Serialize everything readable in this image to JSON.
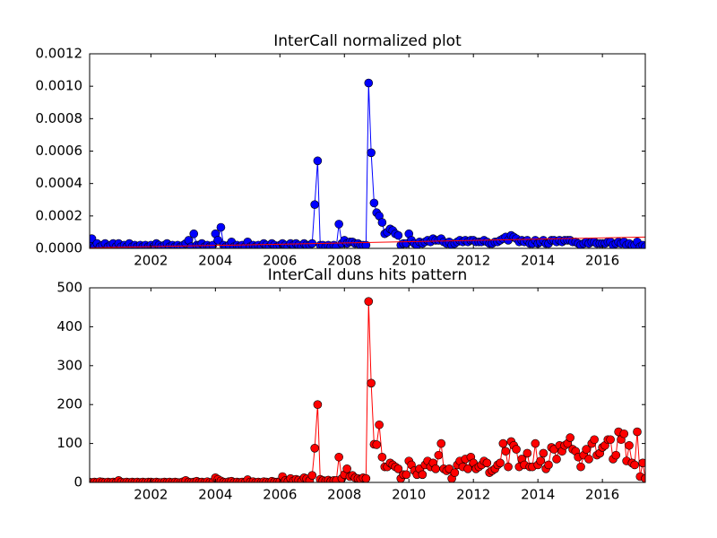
{
  "chart_data": [
    {
      "type": "line",
      "title": "InterCall normalized plot",
      "x": [
        2000.08,
        2000.17,
        2000.25,
        2000.33,
        2000.42,
        2000.5,
        2000.58,
        2000.67,
        2000.75,
        2000.83,
        2000.92,
        2001.0,
        2001.08,
        2001.17,
        2001.25,
        2001.33,
        2001.42,
        2001.5,
        2001.58,
        2001.67,
        2001.75,
        2001.83,
        2001.92,
        2002.0,
        2002.08,
        2002.17,
        2002.25,
        2002.33,
        2002.42,
        2002.5,
        2002.58,
        2002.67,
        2002.75,
        2002.83,
        2002.92,
        2003.0,
        2003.08,
        2003.17,
        2003.25,
        2003.33,
        2003.42,
        2003.5,
        2003.58,
        2003.67,
        2003.75,
        2003.83,
        2003.92,
        2004.0,
        2004.08,
        2004.17,
        2004.25,
        2004.33,
        2004.42,
        2004.5,
        2004.58,
        2004.67,
        2004.75,
        2004.83,
        2004.92,
        2005.0,
        2005.08,
        2005.17,
        2005.25,
        2005.33,
        2005.42,
        2005.5,
        2005.58,
        2005.67,
        2005.75,
        2005.83,
        2005.92,
        2006.0,
        2006.08,
        2006.17,
        2006.25,
        2006.33,
        2006.42,
        2006.5,
        2006.58,
        2006.67,
        2006.75,
        2006.83,
        2006.92,
        2007.0,
        2007.08,
        2007.17,
        2007.25,
        2007.33,
        2007.42,
        2007.5,
        2007.58,
        2007.67,
        2007.75,
        2007.83,
        2007.92,
        2008.0,
        2008.08,
        2008.17,
        2008.25,
        2008.33,
        2008.42,
        2008.5,
        2008.58,
        2008.67,
        2008.75,
        2008.83,
        2008.92,
        2009.0,
        2009.08,
        2009.17,
        2009.25,
        2009.33,
        2009.42,
        2009.5,
        2009.58,
        2009.67,
        2009.75,
        2009.83,
        2009.92,
        2010.0,
        2010.08,
        2010.17,
        2010.25,
        2010.33,
        2010.42,
        2010.5,
        2010.58,
        2010.67,
        2010.75,
        2010.83,
        2010.92,
        2011.0,
        2011.08,
        2011.17,
        2011.25,
        2011.33,
        2011.42,
        2011.5,
        2011.58,
        2011.67,
        2011.75,
        2011.83,
        2011.92,
        2012.0,
        2012.08,
        2012.17,
        2012.25,
        2012.33,
        2012.42,
        2012.5,
        2012.58,
        2012.67,
        2012.75,
        2012.83,
        2012.92,
        2013.0,
        2013.08,
        2013.17,
        2013.25,
        2013.33,
        2013.42,
        2013.5,
        2013.58,
        2013.67,
        2013.75,
        2013.83,
        2013.92,
        2014.0,
        2014.08,
        2014.17,
        2014.25,
        2014.33,
        2014.42,
        2014.5,
        2014.58,
        2014.67,
        2014.75,
        2014.83,
        2014.92,
        2015.0,
        2015.08,
        2015.17,
        2015.25,
        2015.33,
        2015.42,
        2015.5,
        2015.58,
        2015.67,
        2015.75,
        2015.83,
        2015.92,
        2016.0,
        2016.08,
        2016.17,
        2016.25,
        2016.33,
        2016.42,
        2016.5,
        2016.58,
        2016.67,
        2016.75,
        2016.83,
        2016.92,
        2017.0,
        2017.08,
        2017.17,
        2017.25,
        2017.33
      ],
      "series": [
        {
          "color": "#0000ff",
          "marker": true,
          "values": [
            3e-05,
            6e-05,
            1e-05,
            3e-05,
            1e-05,
            2e-05,
            3e-05,
            1e-05,
            2e-05,
            3e-05,
            1e-05,
            3e-05,
            1e-05,
            2e-05,
            1e-05,
            3e-05,
            1e-05,
            2e-05,
            1e-05,
            2e-05,
            1e-05,
            2e-05,
            1e-05,
            2e-05,
            1e-05,
            3e-05,
            2e-05,
            1e-05,
            2e-05,
            3e-05,
            1e-05,
            2e-05,
            1e-05,
            2e-05,
            1e-05,
            2e-05,
            3e-05,
            5e-05,
            1e-05,
            9e-05,
            2e-05,
            2e-05,
            3e-05,
            1e-05,
            2e-05,
            1e-05,
            2e-05,
            9e-05,
            5e-05,
            0.00013,
            2e-05,
            1e-05,
            2e-05,
            4e-05,
            1e-05,
            2e-05,
            1e-05,
            2e-05,
            1e-05,
            4e-05,
            1e-05,
            2e-05,
            1e-05,
            2e-05,
            1e-05,
            3e-05,
            2e-05,
            1e-05,
            3e-05,
            2e-05,
            1e-05,
            2e-05,
            3e-05,
            2e-05,
            1e-05,
            3e-05,
            2e-05,
            3e-05,
            2e-05,
            1e-05,
            3e-05,
            2e-05,
            2e-05,
            3e-05,
            0.00027,
            0.00054,
            2e-05,
            2e-05,
            1e-05,
            2e-05,
            1e-05,
            2e-05,
            1e-05,
            0.00015,
            3e-05,
            5e-05,
            3e-05,
            4e-05,
            4e-05,
            3e-05,
            3e-05,
            2e-05,
            2e-05,
            2e-05,
            0.00102,
            0.00059,
            0.00028,
            0.00022,
            0.0002,
            0.00016,
            9e-05,
            0.0001,
            0.00012,
            0.00011,
            9e-05,
            8e-05,
            2e-05,
            3e-05,
            3e-05,
            9e-05,
            5e-05,
            3e-05,
            2e-05,
            4e-05,
            3e-05,
            4e-05,
            5e-05,
            4e-05,
            6e-05,
            5e-05,
            5e-05,
            6e-05,
            4e-05,
            3e-05,
            4e-05,
            2e-05,
            3e-05,
            4e-05,
            5e-05,
            4e-05,
            5e-05,
            4e-05,
            5e-05,
            5e-05,
            4e-05,
            4e-05,
            4e-05,
            5e-05,
            4e-05,
            3e-05,
            3e-05,
            4e-05,
            4e-05,
            5e-05,
            6e-05,
            7e-05,
            5e-05,
            8e-05,
            7e-05,
            6e-05,
            4e-05,
            5e-05,
            4e-05,
            5e-05,
            3e-05,
            3e-05,
            5e-05,
            3e-05,
            4e-05,
            5e-05,
            3e-05,
            3e-05,
            5e-05,
            5e-05,
            4e-05,
            5e-05,
            4e-05,
            5e-05,
            5e-05,
            5e-05,
            4e-05,
            4e-05,
            3e-05,
            2e-05,
            3e-05,
            4e-05,
            3e-05,
            4e-05,
            4e-05,
            3e-05,
            3e-05,
            3e-05,
            3e-05,
            4e-05,
            4e-05,
            2e-05,
            3e-05,
            4e-05,
            3e-05,
            4e-05,
            2e-05,
            3e-05,
            2e-05,
            2e-05,
            4e-05,
            1e-05,
            2e-05,
            1e-05
          ]
        },
        {
          "color": "#ff0000",
          "marker": false,
          "x": [
            2000.1,
            2017.33
          ],
          "values": [
            3e-06,
            7e-05
          ]
        }
      ],
      "xlim": [
        2000.1,
        2017.33
      ],
      "xticks": [
        2002,
        2004,
        2006,
        2008,
        2010,
        2012,
        2014,
        2016
      ],
      "ylim": [
        0,
        0.0012
      ],
      "yticks": [
        {
          "value": 0,
          "label": "0.0000"
        },
        {
          "value": 0.0002,
          "label": "0.0002"
        },
        {
          "value": 0.0004,
          "label": "0.0004"
        },
        {
          "value": 0.0006,
          "label": "0.0006"
        },
        {
          "value": 0.0008,
          "label": "0.0008"
        },
        {
          "value": 0.001,
          "label": "0.0010"
        },
        {
          "value": 0.0012,
          "label": "0.0012"
        }
      ]
    },
    {
      "type": "line",
      "title": "InterCall duns hits pattern",
      "x": [
        2000.08,
        2000.17,
        2000.25,
        2000.33,
        2000.42,
        2000.5,
        2000.58,
        2000.67,
        2000.75,
        2000.83,
        2000.92,
        2001.0,
        2001.08,
        2001.17,
        2001.25,
        2001.33,
        2001.42,
        2001.5,
        2001.58,
        2001.67,
        2001.75,
        2001.83,
        2001.92,
        2002.0,
        2002.08,
        2002.17,
        2002.25,
        2002.33,
        2002.42,
        2002.5,
        2002.58,
        2002.67,
        2002.75,
        2002.83,
        2002.92,
        2003.0,
        2003.08,
        2003.17,
        2003.25,
        2003.33,
        2003.42,
        2003.5,
        2003.58,
        2003.67,
        2003.75,
        2003.83,
        2003.92,
        2004.0,
        2004.08,
        2004.17,
        2004.25,
        2004.33,
        2004.42,
        2004.5,
        2004.58,
        2004.67,
        2004.75,
        2004.83,
        2004.92,
        2005.0,
        2005.08,
        2005.17,
        2005.25,
        2005.33,
        2005.42,
        2005.5,
        2005.58,
        2005.67,
        2005.75,
        2005.83,
        2005.92,
        2006.0,
        2006.08,
        2006.17,
        2006.25,
        2006.33,
        2006.42,
        2006.5,
        2006.58,
        2006.67,
        2006.75,
        2006.83,
        2006.92,
        2007.0,
        2007.08,
        2007.17,
        2007.25,
        2007.33,
        2007.42,
        2007.5,
        2007.58,
        2007.67,
        2007.75,
        2007.83,
        2007.92,
        2008.0,
        2008.08,
        2008.17,
        2008.25,
        2008.33,
        2008.42,
        2008.5,
        2008.58,
        2008.67,
        2008.75,
        2008.83,
        2008.92,
        2009.0,
        2009.08,
        2009.17,
        2009.25,
        2009.33,
        2009.42,
        2009.5,
        2009.58,
        2009.67,
        2009.75,
        2009.83,
        2009.92,
        2010.0,
        2010.08,
        2010.17,
        2010.25,
        2010.33,
        2010.42,
        2010.5,
        2010.58,
        2010.67,
        2010.75,
        2010.83,
        2010.92,
        2011.0,
        2011.08,
        2011.17,
        2011.25,
        2011.33,
        2011.42,
        2011.5,
        2011.58,
        2011.67,
        2011.75,
        2011.83,
        2011.92,
        2012.0,
        2012.08,
        2012.17,
        2012.25,
        2012.33,
        2012.42,
        2012.5,
        2012.58,
        2012.67,
        2012.75,
        2012.83,
        2012.92,
        2013.0,
        2013.08,
        2013.17,
        2013.25,
        2013.33,
        2013.42,
        2013.5,
        2013.58,
        2013.67,
        2013.75,
        2013.83,
        2013.92,
        2014.0,
        2014.08,
        2014.17,
        2014.25,
        2014.33,
        2014.42,
        2014.5,
        2014.58,
        2014.67,
        2014.75,
        2014.83,
        2014.92,
        2015.0,
        2015.08,
        2015.17,
        2015.25,
        2015.33,
        2015.42,
        2015.5,
        2015.58,
        2015.67,
        2015.75,
        2015.83,
        2015.92,
        2016.0,
        2016.08,
        2016.17,
        2016.25,
        2016.33,
        2016.42,
        2016.5,
        2016.58,
        2016.67,
        2016.75,
        2016.83,
        2016.92,
        2017.0,
        2017.08,
        2017.17,
        2017.25,
        2017.33
      ],
      "series": [
        {
          "color": "#ff0000",
          "marker": true,
          "values": [
            1,
            0,
            1,
            0,
            2,
            1,
            0,
            1,
            0,
            1,
            0,
            5,
            1,
            0,
            1,
            0,
            1,
            0,
            1,
            0,
            1,
            0,
            1,
            1,
            0,
            1,
            0,
            0,
            1,
            0,
            1,
            0,
            1,
            0,
            0,
            2,
            5,
            1,
            0,
            1,
            3,
            0,
            1,
            0,
            2,
            0,
            1,
            12,
            8,
            4,
            1,
            0,
            2,
            3,
            0,
            1,
            0,
            1,
            0,
            7,
            1,
            2,
            0,
            1,
            0,
            2,
            1,
            0,
            3,
            1,
            1,
            2,
            15,
            5,
            3,
            10,
            4,
            8,
            6,
            3,
            12,
            9,
            5,
            18,
            88,
            200,
            8,
            5,
            4,
            6,
            3,
            5,
            5,
            65,
            10,
            20,
            35,
            15,
            18,
            12,
            10,
            8,
            12,
            10,
            465,
            255,
            98,
            97,
            148,
            65,
            40,
            40,
            50,
            45,
            40,
            35,
            10,
            20,
            20,
            55,
            45,
            30,
            20,
            35,
            20,
            45,
            55,
            40,
            50,
            35,
            70,
            100,
            35,
            30,
            35,
            10,
            25,
            45,
            55,
            40,
            60,
            35,
            65,
            50,
            35,
            40,
            45,
            55,
            50,
            25,
            30,
            35,
            45,
            50,
            100,
            80,
            40,
            105,
            95,
            85,
            40,
            60,
            45,
            75,
            40,
            40,
            100,
            45,
            55,
            75,
            35,
            45,
            90,
            85,
            60,
            95,
            80,
            95,
            100,
            115,
            85,
            80,
            65,
            40,
            70,
            85,
            60,
            100,
            110,
            70,
            75,
            90,
            95,
            110,
            110,
            60,
            70,
            130,
            110,
            125,
            55,
            95,
            50,
            45,
            130,
            15,
            50,
            10
          ]
        }
      ],
      "xlim": [
        2000.1,
        2017.33
      ],
      "xticks": [
        2002,
        2004,
        2006,
        2008,
        2010,
        2012,
        2014,
        2016
      ],
      "ylim": [
        0,
        500
      ],
      "yticks": [
        0,
        100,
        200,
        300,
        400,
        500
      ]
    }
  ]
}
